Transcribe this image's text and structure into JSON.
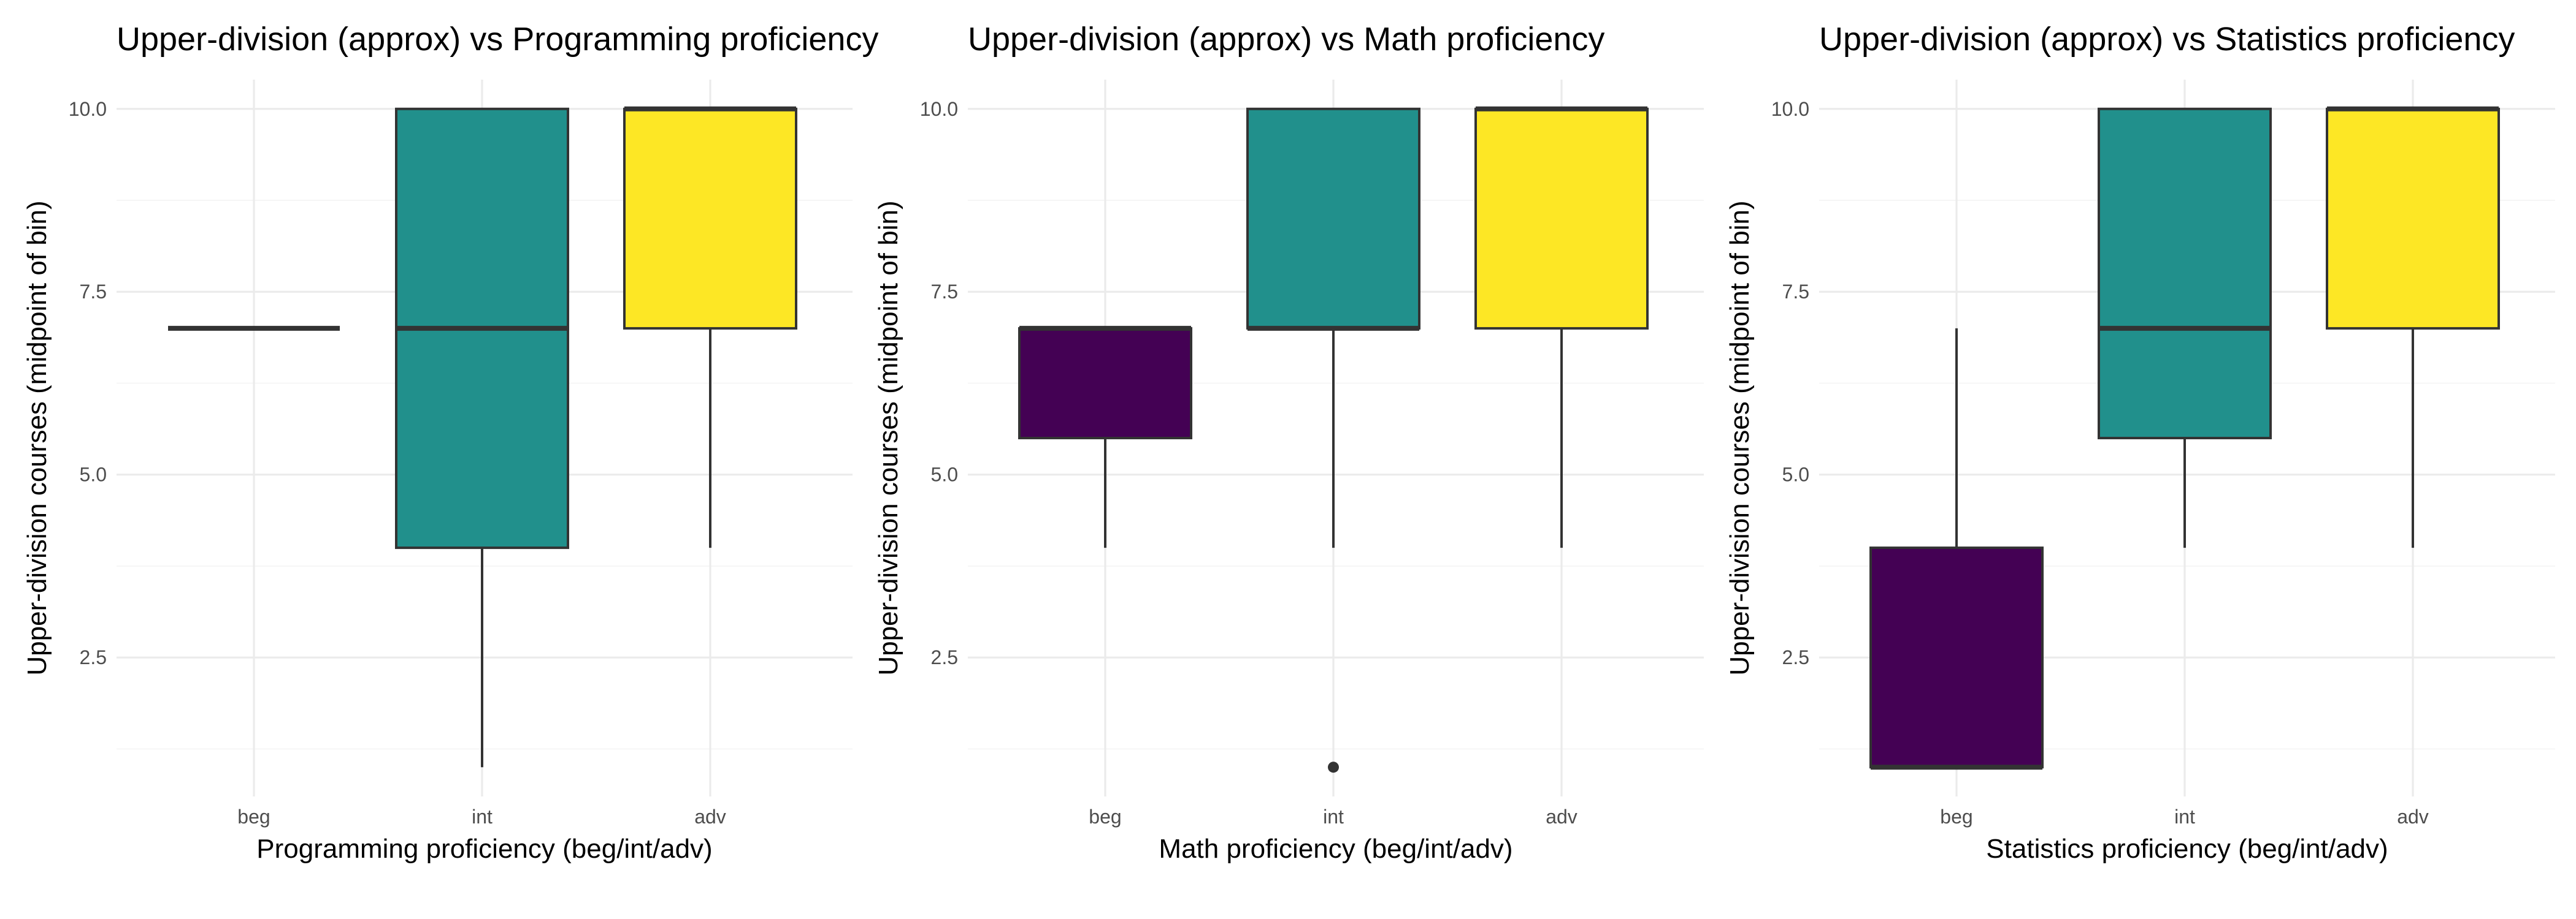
{
  "chart_data": [
    {
      "type": "boxplot",
      "title": "Upper-division (approx) vs Programming proficiency",
      "xlabel": "Programming proficiency (beg/int/adv)",
      "ylabel": "Upper-division courses (midpoint of bin)",
      "categories": [
        "beg",
        "int",
        "adv"
      ],
      "yticks": [
        "2.5",
        "5.0",
        "7.5",
        "10.0"
      ],
      "ylim": [
        0.6,
        10.4
      ],
      "boxes": [
        {
          "category": "beg",
          "min": 7,
          "q1": 7,
          "median": 7,
          "q3": 7,
          "max": 7,
          "outliers": [],
          "color": "#440154"
        },
        {
          "category": "int",
          "min": 1,
          "q1": 4,
          "median": 7,
          "q3": 10,
          "max": 10,
          "outliers": [],
          "color": "#21908C"
        },
        {
          "category": "adv",
          "min": 4,
          "q1": 7,
          "median": 10,
          "q3": 10,
          "max": 10,
          "outliers": [],
          "color": "#FDE725"
        }
      ],
      "grid": true,
      "legend": "none"
    },
    {
      "type": "boxplot",
      "title": "Upper-division (approx) vs Math proficiency",
      "xlabel": "Math proficiency (beg/int/adv)",
      "ylabel": "Upper-division courses (midpoint of bin)",
      "categories": [
        "beg",
        "int",
        "adv"
      ],
      "yticks": [
        "2.5",
        "5.0",
        "7.5",
        "10.0"
      ],
      "ylim": [
        0.6,
        10.4
      ],
      "boxes": [
        {
          "category": "beg",
          "min": 4,
          "q1": 5.5,
          "median": 7,
          "q3": 7,
          "max": 7,
          "outliers": [],
          "color": "#440154"
        },
        {
          "category": "int",
          "min": 4,
          "q1": 7,
          "median": 7,
          "q3": 10,
          "max": 10,
          "outliers": [
            1
          ],
          "color": "#21908C"
        },
        {
          "category": "adv",
          "min": 4,
          "q1": 7,
          "median": 10,
          "q3": 10,
          "max": 10,
          "outliers": [],
          "color": "#FDE725"
        }
      ],
      "grid": true,
      "legend": "none"
    },
    {
      "type": "boxplot",
      "title": "Upper-division (approx) vs Statistics proficiency",
      "xlabel": "Statistics proficiency (beg/int/adv)",
      "ylabel": "Upper-division courses (midpoint of bin)",
      "categories": [
        "beg",
        "int",
        "adv"
      ],
      "yticks": [
        "2.5",
        "5.0",
        "7.5",
        "10.0"
      ],
      "ylim": [
        0.6,
        10.4
      ],
      "boxes": [
        {
          "category": "beg",
          "min": 1,
          "q1": 1,
          "median": 1,
          "q3": 4,
          "max": 7,
          "outliers": [],
          "color": "#440154"
        },
        {
          "category": "int",
          "min": 4,
          "q1": 5.5,
          "median": 7,
          "q3": 10,
          "max": 10,
          "outliers": [],
          "color": "#21908C"
        },
        {
          "category": "adv",
          "min": 4,
          "q1": 7,
          "median": 10,
          "q3": 10,
          "max": 10,
          "outliers": [],
          "color": "#FDE725"
        }
      ],
      "grid": true,
      "legend": "none"
    }
  ]
}
